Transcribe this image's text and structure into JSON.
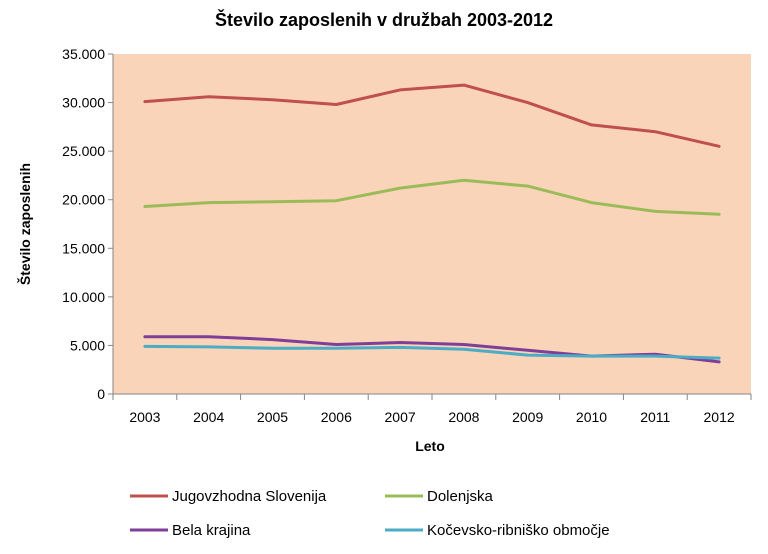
{
  "chart_data": {
    "type": "line",
    "title": "Število zaposlenih v družbah 2003-2012",
    "xlabel": "Leto",
    "ylabel": "Število zaposlenih",
    "categories": [
      "2003",
      "2004",
      "2005",
      "2006",
      "2007",
      "2008",
      "2009",
      "2010",
      "2011",
      "2012"
    ],
    "ylim": [
      0,
      35000
    ],
    "yticks": [
      0,
      5000,
      10000,
      15000,
      20000,
      25000,
      30000,
      35000
    ],
    "ytick_labels": [
      "0",
      "5.000",
      "10.000",
      "15.000",
      "20.000",
      "25.000",
      "30.000",
      "35.000"
    ],
    "grid": false,
    "plot_background": "#fad4b8",
    "legend_position": "bottom",
    "series": [
      {
        "name": "Jugovzhodna Slovenija",
        "color": "#c0504d",
        "values": [
          30100,
          30600,
          30300,
          29800,
          31300,
          31800,
          30000,
          27700,
          27000,
          25500
        ]
      },
      {
        "name": "Dolenjska",
        "color": "#9bbb59",
        "values": [
          19300,
          19700,
          19800,
          19900,
          21200,
          22000,
          21400,
          19700,
          18800,
          18500
        ]
      },
      {
        "name": "Bela krajina",
        "color": "#7f3f98",
        "values": [
          5900,
          5900,
          5600,
          5100,
          5300,
          5100,
          4500,
          3900,
          4100,
          3300
        ]
      },
      {
        "name": "Kočevsko-ribniško območje",
        "color": "#4bacc6",
        "values": [
          4900,
          4850,
          4700,
          4700,
          4800,
          4600,
          4000,
          3900,
          3900,
          3700
        ]
      }
    ]
  }
}
